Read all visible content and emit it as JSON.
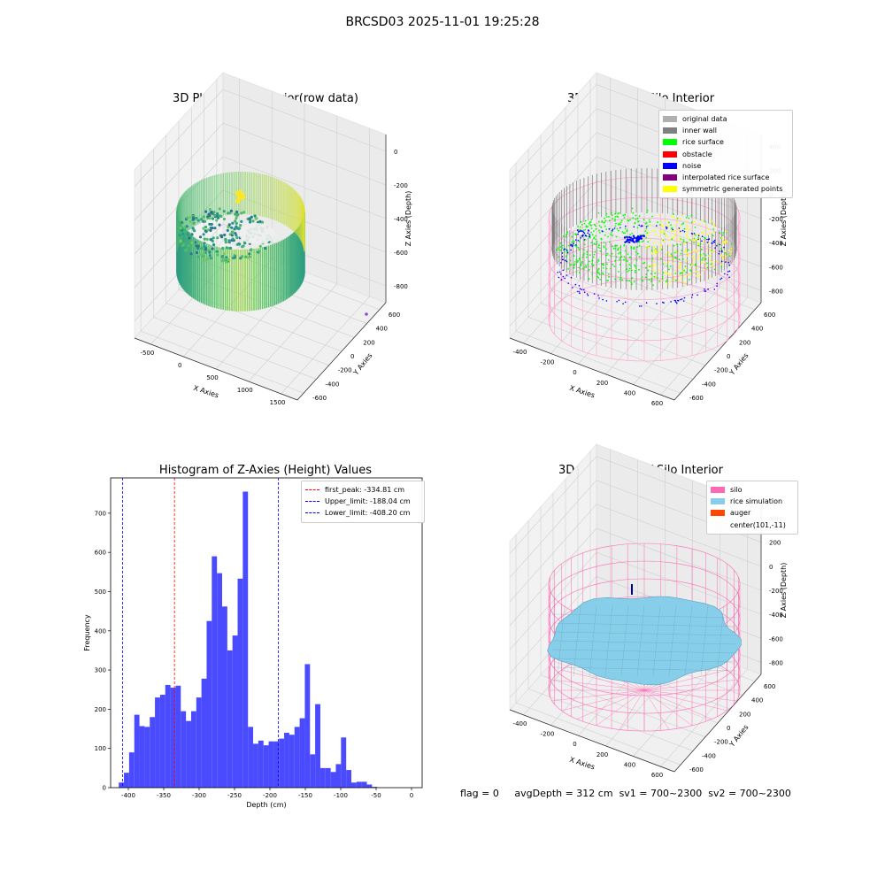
{
  "suptitle": "BRCSD03 2025-11-01 19:25:28",
  "status": {
    "flag": "flag = 0",
    "avg_depth": "avgDepth = 312 cm",
    "sv1": "sv1 = 700~2300",
    "sv2": "sv2 = 700~2300"
  },
  "chart_data": [
    {
      "type": "scatter",
      "title": "3D Plot of Silo Interior(row data)",
      "xlabel": "X Axies",
      "ylabel": "Y Axies",
      "zlabel": "Z Axies (Depth)",
      "xticks": [
        "-500",
        "0",
        "500",
        "1000",
        "1500"
      ],
      "yticks": [
        "-600",
        "-400",
        "-200",
        "0",
        "200",
        "400",
        "600"
      ],
      "zticks": [
        "-800",
        "-600",
        "-400",
        "-200",
        "0"
      ],
      "colormap": "viridis",
      "grid": true
    },
    {
      "type": "scatter",
      "title": "3D classify of Silo Interior",
      "xlabel": "X Axies",
      "ylabel": "Y Axies",
      "zlabel": "Z Axies (Depth)",
      "xticks": [
        "-400",
        "-200",
        "0",
        "200",
        "400",
        "600"
      ],
      "yticks": [
        "-600",
        "-400",
        "-200",
        "0",
        "200",
        "400",
        "600"
      ],
      "zticks": [
        "-800",
        "-600",
        "-400",
        "-200",
        "0",
        "200",
        "400"
      ],
      "legend": [
        {
          "label": "original data",
          "color": "#b0b0b0"
        },
        {
          "label": "inner wall",
          "color": "#808080"
        },
        {
          "label": "rice surface",
          "color": "#00ff00"
        },
        {
          "label": "obstacle",
          "color": "#ff0000"
        },
        {
          "label": "noise",
          "color": "#0000ff"
        },
        {
          "label": "interpolated rice surface",
          "color": "#800080"
        },
        {
          "label": "symmetric generated points",
          "color": "#ffff00"
        }
      ],
      "silo_color": "#ff99cc",
      "grid": true
    },
    {
      "type": "bar",
      "title": "Histogram of Z-Axies (Height) Values",
      "xlabel": "Depth (cm)",
      "ylabel": "Frequency",
      "xlim": [
        -425,
        15
      ],
      "ylim": [
        0,
        790
      ],
      "xticks": [
        -400,
        -350,
        -300,
        -250,
        -200,
        -150,
        -100,
        -50,
        0
      ],
      "yticks": [
        0,
        100,
        200,
        300,
        400,
        500,
        600,
        700
      ],
      "bar_color": "#4a4aff",
      "bin_start": -413.5,
      "bin_width": 7.3,
      "values": [
        13,
        38,
        90,
        186,
        157,
        155,
        180,
        230,
        237,
        262,
        255,
        260,
        195,
        170,
        195,
        230,
        278,
        425,
        590,
        547,
        462,
        350,
        388,
        533,
        755,
        155,
        112,
        120,
        108,
        118,
        118,
        125,
        140,
        135,
        155,
        177,
        315,
        85,
        213,
        50,
        50,
        40,
        60,
        128,
        45,
        13,
        15,
        15,
        8,
        2
      ],
      "lines": [
        {
          "label": "first_peak: -334.81 cm",
          "x": -334.81,
          "color": "#ff0000"
        },
        {
          "label": "Upper_limit: -188.04 cm",
          "x": -188.04,
          "color": "#0000ff"
        },
        {
          "label": "Lower_limit: -408.20 cm",
          "x": -408.2,
          "color": "#0000ff"
        }
      ],
      "legend_position": "top-right"
    },
    {
      "type": "surface",
      "title": "3D simulation of Silo Interior",
      "xlabel": "X Axies",
      "ylabel": "Y Axies",
      "zlabel": "Z Axies (Depth)",
      "xticks": [
        "-400",
        "-200",
        "0",
        "200",
        "400",
        "600"
      ],
      "yticks": [
        "-600",
        "-400",
        "-200",
        "0",
        "200",
        "400",
        "600"
      ],
      "zticks": [
        "-800",
        "-600",
        "-400",
        "-200",
        "0",
        "200",
        "400"
      ],
      "legend": [
        {
          "label": "silo",
          "color": "#ff69b4"
        },
        {
          "label": "rice simulation",
          "color": "#87ceeb"
        },
        {
          "label": "auger",
          "color": "#ff4500"
        },
        {
          "label": "center(101,-11)",
          "color": ""
        }
      ],
      "grid": true
    }
  ]
}
